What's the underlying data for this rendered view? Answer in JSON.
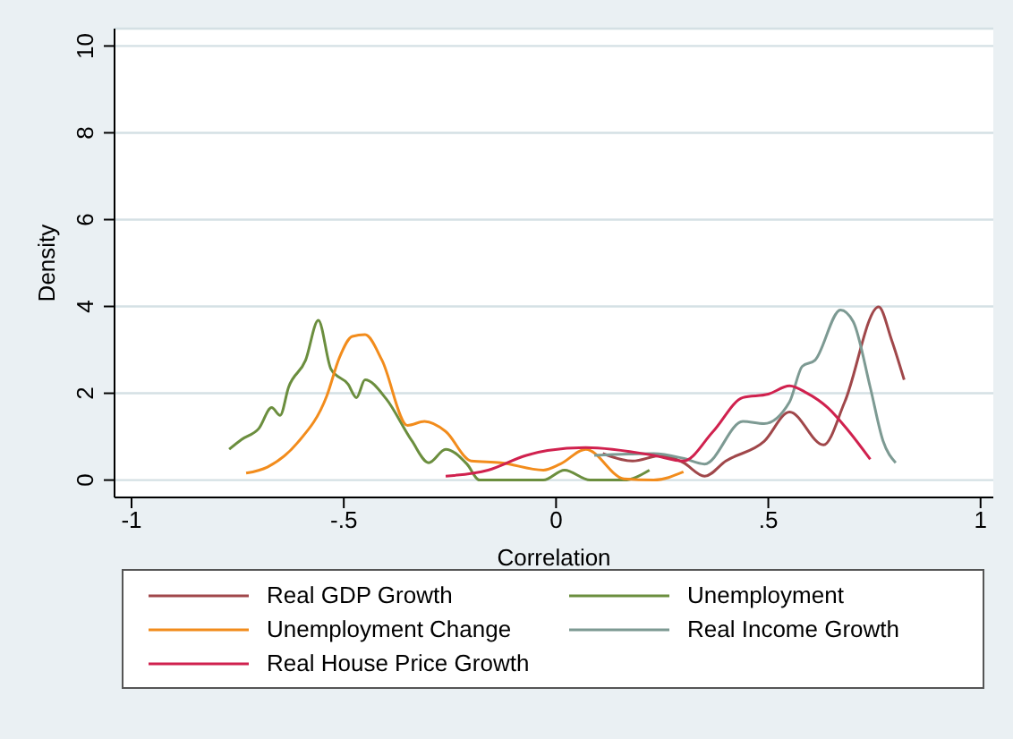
{
  "chart_data": {
    "type": "line",
    "xlabel": "Correlation",
    "ylabel": "Density",
    "xlim": [
      -1.04,
      1.03
    ],
    "ylim": [
      -0.4,
      10.4
    ],
    "xticks": [
      {
        "value": -1,
        "label": "-1"
      },
      {
        "value": -0.5,
        "label": "-.5"
      },
      {
        "value": 0,
        "label": "0"
      },
      {
        "value": 0.5,
        "label": ".5"
      },
      {
        "value": 1,
        "label": "1"
      }
    ],
    "yticks": [
      0,
      2,
      4,
      6,
      8,
      10
    ],
    "grid": "y",
    "legend": "bottom",
    "marker": "none",
    "line_style": "solid",
    "series": [
      {
        "name": "Real GDP Growth",
        "color": "#a0474a",
        "x": [
          0.11,
          0.18,
          0.25,
          0.3,
          0.35,
          0.4,
          0.49,
          0.55,
          0.63,
          0.68,
          0.76,
          0.79,
          0.82
        ],
        "values": [
          0.61,
          0.44,
          0.57,
          0.4,
          0.09,
          0.44,
          0.89,
          1.57,
          0.81,
          1.8,
          3.99,
          3.24,
          2.31
        ]
      },
      {
        "name": "Unemployment",
        "color": "#6b8e3e",
        "x": [
          -0.77,
          -0.74,
          -0.7,
          -0.67,
          -0.65,
          -0.63,
          -0.59,
          -0.56,
          -0.53,
          -0.49,
          -0.47,
          -0.45,
          -0.4,
          -0.34,
          -0.3,
          -0.26,
          -0.21,
          -0.18,
          -0.03,
          0.02,
          0.08,
          0.16,
          0.22
        ],
        "values": [
          0.71,
          0.94,
          1.19,
          1.67,
          1.49,
          2.14,
          2.76,
          3.68,
          2.55,
          2.21,
          1.9,
          2.31,
          1.87,
          0.91,
          0.4,
          0.71,
          0.37,
          0,
          0,
          0.23,
          0,
          0,
          0.23
        ]
      },
      {
        "name": "Unemployment Change",
        "color": "#f28c1c",
        "x": [
          -0.73,
          -0.68,
          -0.61,
          -0.54,
          -0.51,
          -0.48,
          -0.45,
          -0.41,
          -0.35,
          -0.31,
          -0.26,
          -0.2,
          -0.13,
          -0.03,
          0.01,
          0.07,
          0.16,
          0.23,
          0.3
        ],
        "values": [
          0.16,
          0.3,
          0.85,
          1.94,
          2.83,
          3.31,
          3.35,
          2.76,
          1.26,
          1.35,
          1.12,
          0.44,
          0.4,
          0.23,
          0.37,
          0.71,
          0.03,
          0,
          0.19
        ]
      },
      {
        "name": "Real Income Growth",
        "color": "#7d9a93",
        "x": [
          0.09,
          0.23,
          0.3,
          0.35,
          0.44,
          0.49,
          0.55,
          0.58,
          0.61,
          0.67,
          0.7,
          0.74,
          0.77,
          0.8
        ],
        "values": [
          0.57,
          0.61,
          0.5,
          0.37,
          1.35,
          1.3,
          1.8,
          2.62,
          2.76,
          3.92,
          3.65,
          2.14,
          0.91,
          0.4
        ]
      },
      {
        "name": "Real House Price Growth",
        "color": "#d0214e",
        "x": [
          -0.26,
          -0.16,
          -0.07,
          -0.02,
          0.07,
          0.23,
          0.3,
          0.37,
          0.44,
          0.5,
          0.55,
          0.59,
          0.64,
          0.69,
          0.74
        ],
        "values": [
          0.09,
          0.23,
          0.57,
          0.68,
          0.75,
          0.57,
          0.44,
          1.12,
          1.9,
          1.98,
          2.17,
          2.01,
          1.67,
          1.12,
          0.48
        ]
      }
    ]
  }
}
